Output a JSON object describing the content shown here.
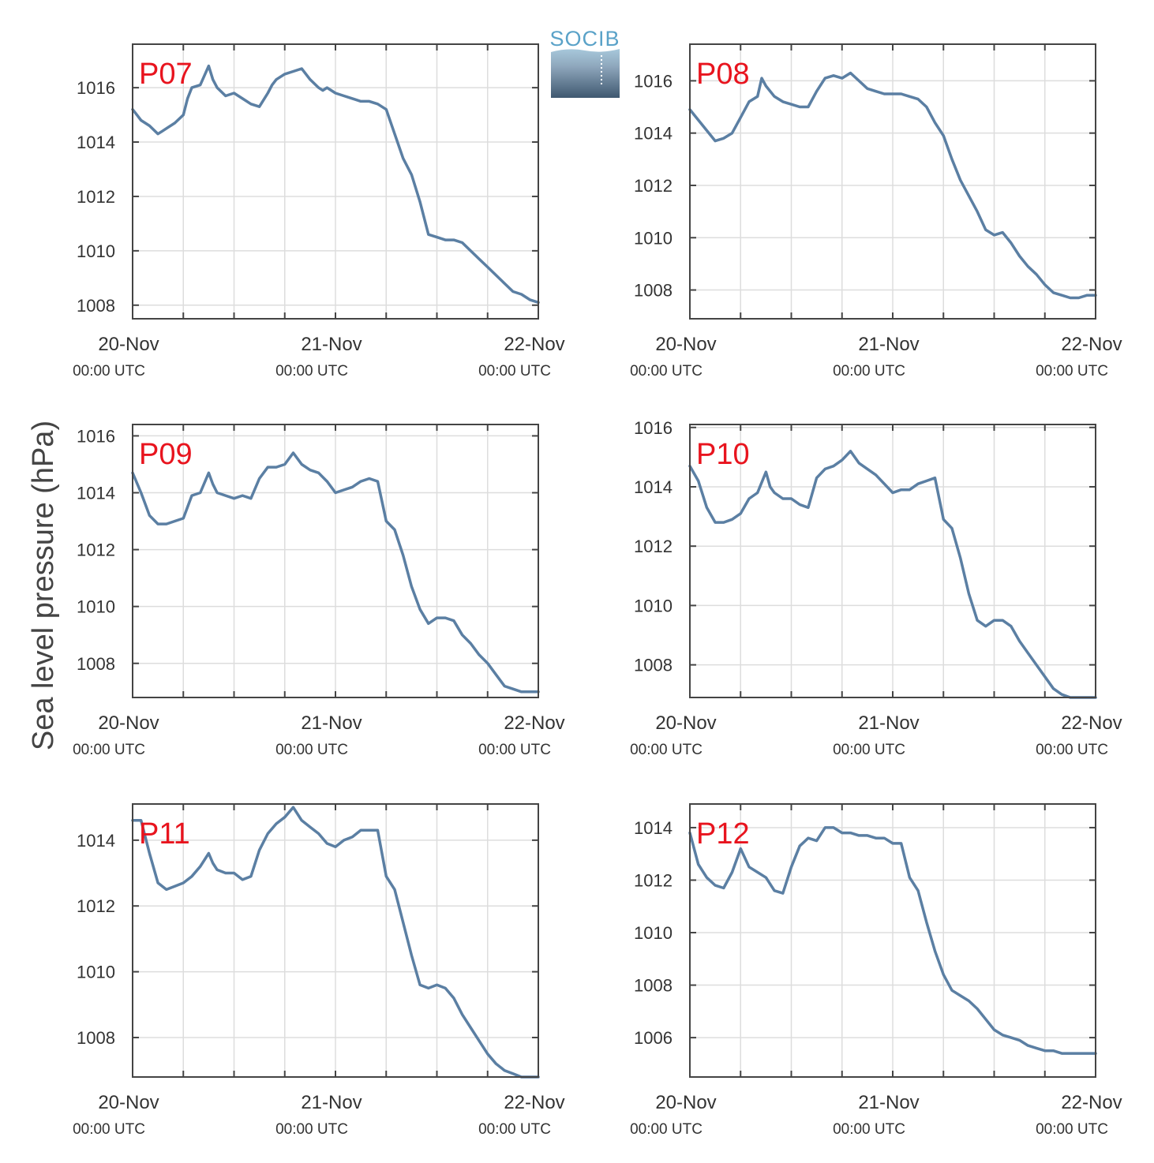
{
  "ylabel": "Sea level pressure (hPa)",
  "logo": {
    "text": "SOCIB"
  },
  "colors": {
    "line": "#5b7fa3",
    "panel_label": "#e8141e",
    "grid": "#dddddd",
    "axis": "#444444"
  },
  "x_ticks": [
    {
      "date": "20-Nov",
      "time": "00:00 UTC",
      "hours": 0
    },
    {
      "date": "21-Nov",
      "time": "00:00 UTC",
      "hours": 24
    },
    {
      "date": "22-Nov",
      "time": "00:00 UTC",
      "hours": 48
    }
  ],
  "chart_data": [
    {
      "type": "line",
      "label": "P07",
      "xlim": [
        0,
        48
      ],
      "ylim": [
        1007.5,
        1017.6
      ],
      "yticks": [
        1008,
        1010,
        1012,
        1014,
        1016
      ],
      "series": [
        {
          "x": [
            0,
            0.5,
            1,
            2,
            3,
            3.5,
            4,
            5,
            6,
            6.5,
            7,
            8,
            9,
            9.5,
            10,
            11,
            12,
            13,
            14,
            15,
            16,
            16.5,
            17,
            17.5,
            18,
            19,
            20,
            21,
            22,
            22.5,
            23,
            24,
            25,
            26,
            27,
            28,
            29,
            30,
            31,
            32,
            33,
            34,
            35,
            36,
            37,
            38,
            39,
            40,
            41,
            42,
            43,
            44,
            45,
            46,
            47,
            48
          ],
          "y": [
            1015.2,
            1015.0,
            1014.8,
            1014.6,
            1014.3,
            1014.4,
            1014.5,
            1014.7,
            1015.0,
            1015.6,
            1016.0,
            1016.1,
            1016.8,
            1016.3,
            1016.0,
            1015.7,
            1015.8,
            1015.6,
            1015.4,
            1015.3,
            1015.8,
            1016.1,
            1016.3,
            1016.4,
            1016.5,
            1016.6,
            1016.7,
            1016.3,
            1016.0,
            1015.9,
            1016.0,
            1015.8,
            1015.7,
            1015.6,
            1015.5,
            1015.5,
            1015.4,
            1015.2,
            1014.3,
            1013.4,
            1012.8,
            1011.8,
            1010.6,
            1010.5,
            1010.4,
            1010.4,
            1010.3,
            1010.0,
            1009.7,
            1009.4,
            1009.1,
            1008.8,
            1008.5,
            1008.4,
            1008.2,
            1008.1
          ]
        }
      ]
    },
    {
      "type": "line",
      "label": "P08",
      "xlim": [
        0,
        48
      ],
      "ylim": [
        1006.9,
        1017.4
      ],
      "yticks": [
        1008,
        1010,
        1012,
        1014,
        1016
      ],
      "series": [
        {
          "x": [
            0,
            1,
            2,
            3,
            4,
            5,
            6,
            7,
            8,
            8.5,
            9,
            10,
            11,
            12,
            13,
            14,
            15,
            16,
            17,
            18,
            19,
            20,
            21,
            22,
            23,
            24,
            25,
            26,
            27,
            28,
            29,
            30,
            31,
            32,
            33,
            34,
            35,
            36,
            37,
            38,
            39,
            40,
            41,
            42,
            43,
            44,
            45,
            46,
            47,
            48
          ],
          "y": [
            1014.9,
            1014.5,
            1014.1,
            1013.7,
            1013.8,
            1014.0,
            1014.6,
            1015.2,
            1015.4,
            1016.1,
            1015.8,
            1015.4,
            1015.2,
            1015.1,
            1015.0,
            1015.0,
            1015.6,
            1016.1,
            1016.2,
            1016.1,
            1016.3,
            1016.0,
            1015.7,
            1015.6,
            1015.5,
            1015.5,
            1015.5,
            1015.4,
            1015.3,
            1015.0,
            1014.4,
            1013.9,
            1013.0,
            1012.2,
            1011.6,
            1011.0,
            1010.3,
            1010.1,
            1010.2,
            1009.8,
            1009.3,
            1008.9,
            1008.6,
            1008.2,
            1007.9,
            1007.8,
            1007.7,
            1007.7,
            1007.8,
            1007.8
          ]
        }
      ]
    },
    {
      "type": "line",
      "label": "P09",
      "xlim": [
        0,
        48
      ],
      "ylim": [
        1006.8,
        1016.4
      ],
      "yticks": [
        1008,
        1010,
        1012,
        1014,
        1016
      ],
      "series": [
        {
          "x": [
            0,
            1,
            2,
            3,
            4,
            5,
            6,
            7,
            8,
            9,
            9.5,
            10,
            11,
            12,
            13,
            14,
            15,
            16,
            17,
            18,
            19,
            20,
            21,
            22,
            23,
            24,
            25,
            26,
            27,
            28,
            29,
            30,
            31,
            32,
            33,
            34,
            35,
            36,
            37,
            38,
            39,
            40,
            41,
            42,
            43,
            44,
            45,
            46,
            47,
            48
          ],
          "y": [
            1014.7,
            1014.0,
            1013.2,
            1012.9,
            1012.9,
            1013.0,
            1013.1,
            1013.9,
            1014.0,
            1014.7,
            1014.3,
            1014.0,
            1013.9,
            1013.8,
            1013.9,
            1013.8,
            1014.5,
            1014.9,
            1014.9,
            1015.0,
            1015.4,
            1015.0,
            1014.8,
            1014.7,
            1014.4,
            1014.0,
            1014.1,
            1014.2,
            1014.4,
            1014.5,
            1014.4,
            1013.0,
            1012.7,
            1011.8,
            1010.7,
            1009.9,
            1009.4,
            1009.6,
            1009.6,
            1009.5,
            1009.0,
            1008.7,
            1008.3,
            1008.0,
            1007.6,
            1007.2,
            1007.1,
            1007.0,
            1007.0,
            1007.0
          ]
        }
      ]
    },
    {
      "type": "line",
      "label": "P10",
      "xlim": [
        0,
        48
      ],
      "ylim": [
        1006.9,
        1016.1
      ],
      "yticks": [
        1008,
        1010,
        1012,
        1014,
        1016
      ],
      "series": [
        {
          "x": [
            0,
            1,
            2,
            3,
            4,
            5,
            6,
            7,
            8,
            9,
            9.5,
            10,
            11,
            12,
            13,
            14,
            15,
            16,
            17,
            18,
            19,
            20,
            21,
            22,
            23,
            24,
            25,
            26,
            27,
            28,
            29,
            30,
            31,
            32,
            33,
            34,
            35,
            36,
            37,
            38,
            39,
            40,
            41,
            42,
            43,
            44,
            45,
            46,
            47,
            48
          ],
          "y": [
            1014.7,
            1014.2,
            1013.3,
            1012.8,
            1012.8,
            1012.9,
            1013.1,
            1013.6,
            1013.8,
            1014.5,
            1014.0,
            1013.8,
            1013.6,
            1013.6,
            1013.4,
            1013.3,
            1014.3,
            1014.6,
            1014.7,
            1014.9,
            1015.2,
            1014.8,
            1014.6,
            1014.4,
            1014.1,
            1013.8,
            1013.9,
            1013.9,
            1014.1,
            1014.2,
            1014.3,
            1012.9,
            1012.6,
            1011.6,
            1010.4,
            1009.5,
            1009.3,
            1009.5,
            1009.5,
            1009.3,
            1008.8,
            1008.4,
            1008.0,
            1007.6,
            1007.2,
            1007.0,
            1006.9,
            1006.9,
            1006.9,
            1006.9
          ]
        }
      ]
    },
    {
      "type": "line",
      "label": "P11",
      "xlim": [
        0,
        48
      ],
      "ylim": [
        1006.8,
        1015.1
      ],
      "yticks": [
        1008,
        1010,
        1012,
        1014
      ],
      "series": [
        {
          "x": [
            0,
            1,
            2,
            3,
            4,
            5,
            6,
            7,
            8,
            9,
            9.5,
            10,
            11,
            12,
            13,
            14,
            15,
            16,
            17,
            18,
            19,
            20,
            21,
            22,
            23,
            24,
            25,
            26,
            27,
            28,
            29,
            30,
            31,
            32,
            33,
            34,
            35,
            36,
            37,
            38,
            39,
            40,
            41,
            42,
            43,
            44,
            45,
            46,
            47,
            48
          ],
          "y": [
            1014.6,
            1014.6,
            1013.6,
            1012.7,
            1012.5,
            1012.6,
            1012.7,
            1012.9,
            1013.2,
            1013.6,
            1013.3,
            1013.1,
            1013.0,
            1013.0,
            1012.8,
            1012.9,
            1013.7,
            1014.2,
            1014.5,
            1014.7,
            1015.0,
            1014.6,
            1014.4,
            1014.2,
            1013.9,
            1013.8,
            1014.0,
            1014.1,
            1014.3,
            1014.3,
            1014.3,
            1012.9,
            1012.5,
            1011.5,
            1010.5,
            1009.6,
            1009.5,
            1009.6,
            1009.5,
            1009.2,
            1008.7,
            1008.3,
            1007.9,
            1007.5,
            1007.2,
            1007.0,
            1006.9,
            1006.8,
            1006.8,
            1006.8
          ]
        }
      ]
    },
    {
      "type": "line",
      "label": "P12",
      "xlim": [
        0,
        48
      ],
      "ylim": [
        1004.5,
        1014.9
      ],
      "yticks": [
        1006,
        1008,
        1010,
        1012,
        1014
      ],
      "series": [
        {
          "x": [
            0,
            1,
            2,
            3,
            4,
            5,
            6,
            7,
            8,
            9,
            10,
            11,
            12,
            13,
            14,
            15,
            16,
            17,
            18,
            19,
            20,
            21,
            22,
            23,
            24,
            25,
            26,
            27,
            28,
            29,
            30,
            31,
            32,
            33,
            34,
            35,
            36,
            37,
            38,
            39,
            40,
            41,
            42,
            43,
            44,
            45,
            46,
            47,
            48
          ],
          "y": [
            1013.8,
            1012.6,
            1012.1,
            1011.8,
            1011.7,
            1012.3,
            1013.2,
            1012.5,
            1012.3,
            1012.1,
            1011.6,
            1011.5,
            1012.5,
            1013.3,
            1013.6,
            1013.5,
            1014.0,
            1014.0,
            1013.8,
            1013.8,
            1013.7,
            1013.7,
            1013.6,
            1013.6,
            1013.4,
            1013.4,
            1012.1,
            1011.6,
            1010.4,
            1009.3,
            1008.4,
            1007.8,
            1007.6,
            1007.4,
            1007.1,
            1006.7,
            1006.3,
            1006.1,
            1006.0,
            1005.9,
            1005.7,
            1005.6,
            1005.5,
            1005.5,
            1005.4,
            1005.4,
            1005.4,
            1005.4,
            1005.4
          ]
        }
      ]
    }
  ]
}
